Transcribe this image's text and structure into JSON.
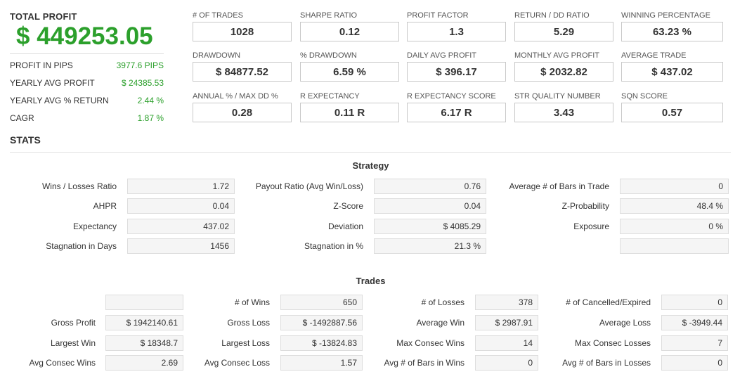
{
  "summary": {
    "total_profit_label": "TOTAL PROFIT",
    "total_profit_value": "$ 449253.05",
    "rows": [
      {
        "label": "PROFIT IN PIPS",
        "value": "3977.6 PIPS"
      },
      {
        "label": "YEARLY AVG PROFIT",
        "value": "$ 24385.53"
      },
      {
        "label": "YEARLY AVG % RETURN",
        "value": "2.44 %"
      },
      {
        "label": "CAGR",
        "value": "1.87 %"
      }
    ]
  },
  "metrics": [
    [
      {
        "label": "# OF TRADES",
        "value": "1028"
      },
      {
        "label": "SHARPE RATIO",
        "value": "0.12"
      },
      {
        "label": "PROFIT FACTOR",
        "value": "1.3"
      },
      {
        "label": "RETURN / DD RATIO",
        "value": "5.29"
      },
      {
        "label": "WINNING PERCENTAGE",
        "value": "63.23 %"
      }
    ],
    [
      {
        "label": "DRAWDOWN",
        "value": "$ 84877.52"
      },
      {
        "label": "% DRAWDOWN",
        "value": "6.59 %"
      },
      {
        "label": "DAILY AVG PROFIT",
        "value": "$ 396.17"
      },
      {
        "label": "MONTHLY AVG PROFIT",
        "value": "$ 2032.82"
      },
      {
        "label": "AVERAGE TRADE",
        "value": "$ 437.02"
      }
    ],
    [
      {
        "label": "ANNUAL % / MAX DD %",
        "value": "0.28"
      },
      {
        "label": "R EXPECTANCY",
        "value": "0.11 R"
      },
      {
        "label": "R EXPECTANCY SCORE",
        "value": "6.17 R"
      },
      {
        "label": "STR QUALITY NUMBER",
        "value": "3.43"
      },
      {
        "label": "SQN SCORE",
        "value": "0.57"
      }
    ]
  ],
  "stats_title": "STATS",
  "strategy": {
    "title": "Strategy",
    "rows": [
      [
        {
          "label": "Wins / Losses Ratio",
          "value": "1.72"
        },
        {
          "label": "Payout Ratio (Avg Win/Loss)",
          "value": "0.76"
        },
        {
          "label": "Average # of Bars in Trade",
          "value": "0"
        }
      ],
      [
        {
          "label": "AHPR",
          "value": "0.04"
        },
        {
          "label": "Z-Score",
          "value": "0.04"
        },
        {
          "label": "Z-Probability",
          "value": "48.4 %"
        }
      ],
      [
        {
          "label": "Expectancy",
          "value": "437.02"
        },
        {
          "label": "Deviation",
          "value": "$ 4085.29"
        },
        {
          "label": "Exposure",
          "value": "0 %"
        }
      ],
      [
        {
          "label": "Stagnation in Days",
          "value": "1456"
        },
        {
          "label": "Stagnation in %",
          "value": "21.3 %"
        },
        {
          "label": "",
          "value": ""
        }
      ]
    ]
  },
  "trades": {
    "title": "Trades",
    "rows": [
      [
        {
          "label": "",
          "value": ""
        },
        {
          "label": "# of Wins",
          "value": "650"
        },
        {
          "label": "# of Losses",
          "value": "378"
        },
        {
          "label": "# of Cancelled/Expired",
          "value": "0"
        }
      ],
      [
        {
          "label": "Gross Profit",
          "value": "$ 1942140.61"
        },
        {
          "label": "Gross Loss",
          "value": "$ -1492887.56"
        },
        {
          "label": "Average Win",
          "value": "$ 2987.91"
        },
        {
          "label": "Average Loss",
          "value": "$ -3949.44"
        }
      ],
      [
        {
          "label": "Largest Win",
          "value": "$ 18348.7"
        },
        {
          "label": "Largest Loss",
          "value": "$ -13824.83"
        },
        {
          "label": "Max Consec Wins",
          "value": "14"
        },
        {
          "label": "Max Consec Losses",
          "value": "7"
        }
      ],
      [
        {
          "label": "Avg Consec Wins",
          "value": "2.69"
        },
        {
          "label": "Avg Consec Loss",
          "value": "1.57"
        },
        {
          "label": "Avg # of Bars in Wins",
          "value": "0"
        },
        {
          "label": "Avg # of Bars in Losses",
          "value": "0"
        }
      ]
    ]
  },
  "colors": {
    "accent_green": "#2ca02c",
    "text": "#333333"
  }
}
